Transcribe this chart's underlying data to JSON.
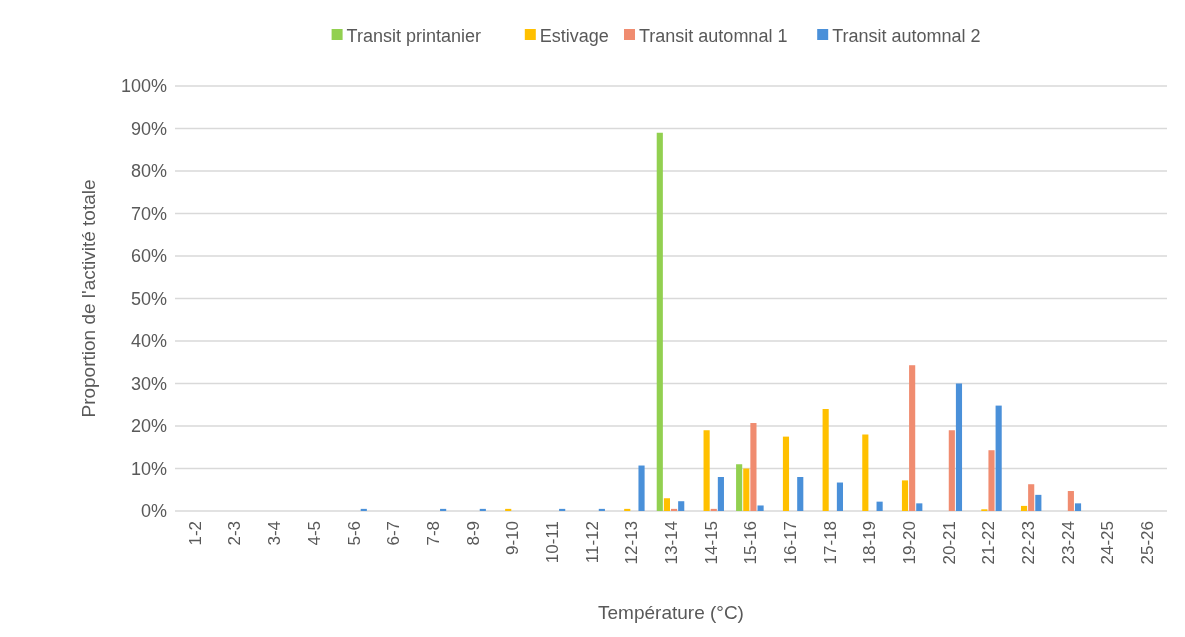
{
  "chart_data": {
    "type": "bar",
    "xlabel": "Température (°C)",
    "ylabel": "Proportion de l'activité totale",
    "categories": [
      "1-2",
      "2-3",
      "3-4",
      "4-5",
      "5-6",
      "6-7",
      "7-8",
      "8-9",
      "9-10",
      "10-11",
      "11-12",
      "12-13",
      "13-14",
      "14-15",
      "15-16",
      "16-17",
      "17-18",
      "18-19",
      "19-20",
      "20-21",
      "21-22",
      "22-23",
      "23-24",
      "24-25",
      "25-26"
    ],
    "series": [
      {
        "name": "Transit printanier",
        "color": "#92d050",
        "values": [
          0,
          0,
          0,
          0,
          0,
          0,
          0,
          0,
          0,
          0,
          0,
          0,
          89,
          0,
          11,
          0,
          0,
          0,
          0,
          0,
          0,
          0,
          0,
          0,
          0
        ]
      },
      {
        "name": "Estivage",
        "color": "#ffc000",
        "values": [
          0,
          0,
          0,
          0,
          0,
          0,
          0,
          0,
          0.5,
          0,
          0,
          0.5,
          3,
          19,
          10,
          17.5,
          24,
          18,
          7.2,
          0,
          0.4,
          1.2,
          0,
          0,
          0
        ]
      },
      {
        "name": "Transit automnal 1",
        "color": "#f08c70",
        "values": [
          0,
          0,
          0,
          0,
          0,
          0,
          0,
          0,
          0,
          0,
          0,
          0,
          0.5,
          0.5,
          20.7,
          0,
          0,
          0,
          34.3,
          19,
          14.3,
          6.3,
          4.7,
          0,
          0
        ]
      },
      {
        "name": "Transit automnal 2",
        "color": "#4a90d9",
        "values": [
          0,
          0,
          0,
          0,
          0.5,
          0,
          0.5,
          0.5,
          0,
          0.5,
          0.5,
          10.7,
          2.3,
          8,
          1.3,
          8,
          6.7,
          2.2,
          1.8,
          30,
          24.8,
          3.8,
          1.8,
          0,
          0
        ]
      }
    ],
    "ylim": [
      0,
      100
    ],
    "yticks": [
      {
        "value": 0,
        "label": "0%"
      },
      {
        "value": 10,
        "label": "10%"
      },
      {
        "value": 20,
        "label": "20%"
      },
      {
        "value": 30,
        "label": "30%"
      },
      {
        "value": 40,
        "label": "40%"
      },
      {
        "value": 50,
        "label": "50%"
      },
      {
        "value": 60,
        "label": "60%"
      },
      {
        "value": 70,
        "label": "70%"
      },
      {
        "value": 80,
        "label": "80%"
      },
      {
        "value": 90,
        "label": "90%"
      },
      {
        "value": 100,
        "label": "100%"
      }
    ],
    "grid": "y",
    "legend": "top"
  }
}
